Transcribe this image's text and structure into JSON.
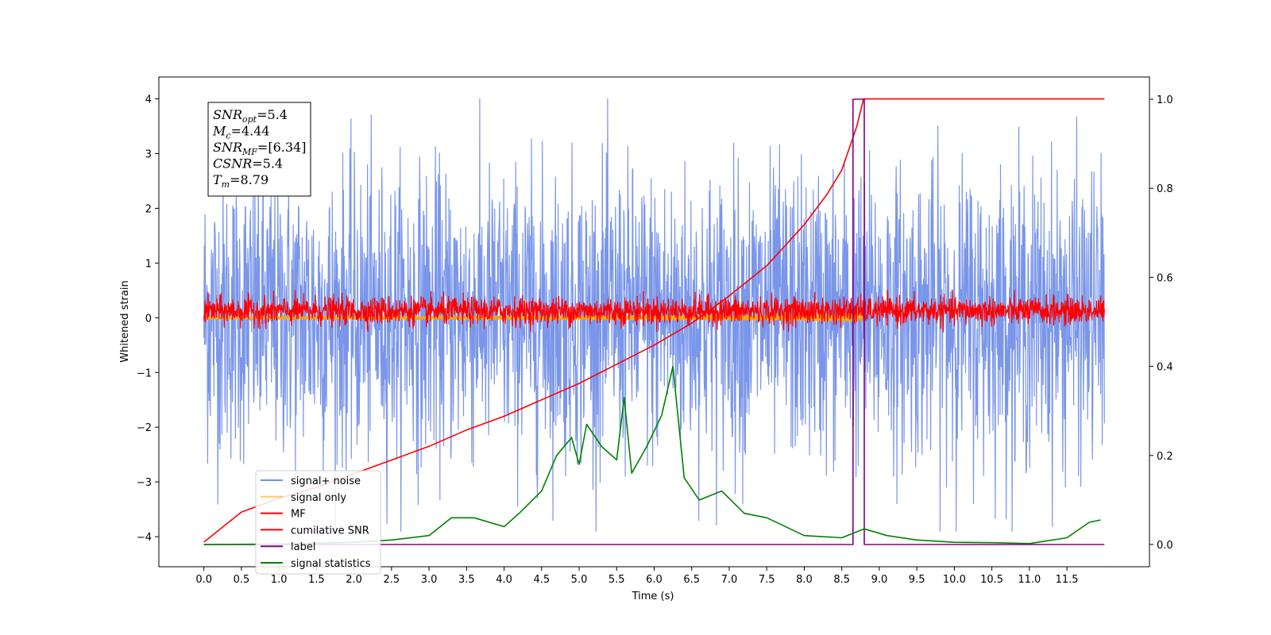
{
  "chart_data": {
    "type": "line",
    "title": "",
    "xlabel": "Time (s)",
    "ylabel": "Whitened strain",
    "xlim": [
      -0.6,
      12.6
    ],
    "ylim": [
      -4.55,
      4.4
    ],
    "ylim_right": [
      -0.05,
      1.05
    ],
    "grid": false,
    "legend_position": "lower-left",
    "x_ticks": [
      "0.0",
      "0.5",
      "1.0",
      "1.5",
      "2.0",
      "2.5",
      "3.0",
      "3.5",
      "4.0",
      "4.5",
      "5.0",
      "5.5",
      "6.0",
      "6.5",
      "7.0",
      "7.5",
      "8.0",
      "8.5",
      "9.0",
      "9.5",
      "10.0",
      "10.5",
      "11.0",
      "11.5"
    ],
    "y_ticks_left": [
      "4",
      "3",
      "2",
      "1",
      "0",
      "−1",
      "−2",
      "−3",
      "−4"
    ],
    "y_ticks_right": [
      "1.0",
      "0.8",
      "0.6",
      "0.4",
      "0.2",
      "0.0"
    ],
    "annotation": {
      "lines": [
        {
          "base": "SNR",
          "sub": "opt",
          "value": "=5.4"
        },
        {
          "base": "M",
          "sub": "c",
          "value": "=4.44"
        },
        {
          "base": "SNR",
          "sub": "MF",
          "value": "=[6.34]"
        },
        {
          "base": "CSNR",
          "sub": "",
          "value": "=5.4"
        },
        {
          "base": "T",
          "sub": "m",
          "value": "=8.79"
        }
      ]
    },
    "series": [
      {
        "name": "signal+ noise",
        "color": "#4169e1",
        "axis": "left",
        "kind": "noise",
        "x_range": [
          0,
          12
        ],
        "y_range": [
          -3.9,
          4.0
        ]
      },
      {
        "name": "signal only",
        "color": "#ffa500",
        "axis": "left",
        "kind": "chirp",
        "x_range": [
          0,
          8.79
        ],
        "y_range": [
          -0.3,
          0.3
        ]
      },
      {
        "name": "MF",
        "color": "#ff0000",
        "axis": "left",
        "kind": "noise",
        "x_range": [
          0,
          12
        ],
        "y_range": [
          -0.25,
          0.5
        ]
      },
      {
        "name": "cumilative SNR",
        "color": "#ff0000",
        "axis": "left",
        "x": [
          0,
          0.5,
          1,
          1.5,
          2,
          2.5,
          3,
          3.5,
          4,
          4.5,
          5,
          5.5,
          6,
          6.5,
          7,
          7.5,
          8,
          8.3,
          8.5,
          8.7,
          8.79,
          9,
          10,
          11,
          12
        ],
        "y": [
          -4.1,
          -3.55,
          -3.3,
          -3.1,
          -2.85,
          -2.6,
          -2.35,
          -2.05,
          -1.8,
          -1.5,
          -1.2,
          -0.85,
          -0.5,
          -0.1,
          0.4,
          0.95,
          1.7,
          2.25,
          2.7,
          3.5,
          4.0,
          4.0,
          4.0,
          4.0,
          4.0
        ]
      },
      {
        "name": "label",
        "color": "#800080",
        "axis": "right",
        "x": [
          0,
          8.65,
          8.65,
          8.8,
          8.8,
          12
        ],
        "y": [
          0,
          0,
          1,
          1,
          0,
          0
        ]
      },
      {
        "name": "signal statistics",
        "color": "#008000",
        "axis": "right",
        "x": [
          0,
          1,
          2,
          2.5,
          3,
          3.3,
          3.6,
          4,
          4.2,
          4.5,
          4.7,
          4.9,
          5,
          5.1,
          5.3,
          5.5,
          5.6,
          5.7,
          5.9,
          6.1,
          6.25,
          6.4,
          6.6,
          6.9,
          7.2,
          7.5,
          8,
          8.5,
          8.8,
          9.1,
          9.5,
          10,
          10.5,
          11,
          11.5,
          11.8,
          11.95
        ],
        "y": [
          0.0,
          0.001,
          0.005,
          0.01,
          0.02,
          0.06,
          0.06,
          0.04,
          0.07,
          0.12,
          0.2,
          0.24,
          0.18,
          0.27,
          0.22,
          0.19,
          0.33,
          0.16,
          0.22,
          0.29,
          0.4,
          0.15,
          0.1,
          0.12,
          0.07,
          0.06,
          0.02,
          0.015,
          0.035,
          0.02,
          0.01,
          0.005,
          0.004,
          0.002,
          0.015,
          0.05,
          0.055
        ]
      }
    ]
  }
}
